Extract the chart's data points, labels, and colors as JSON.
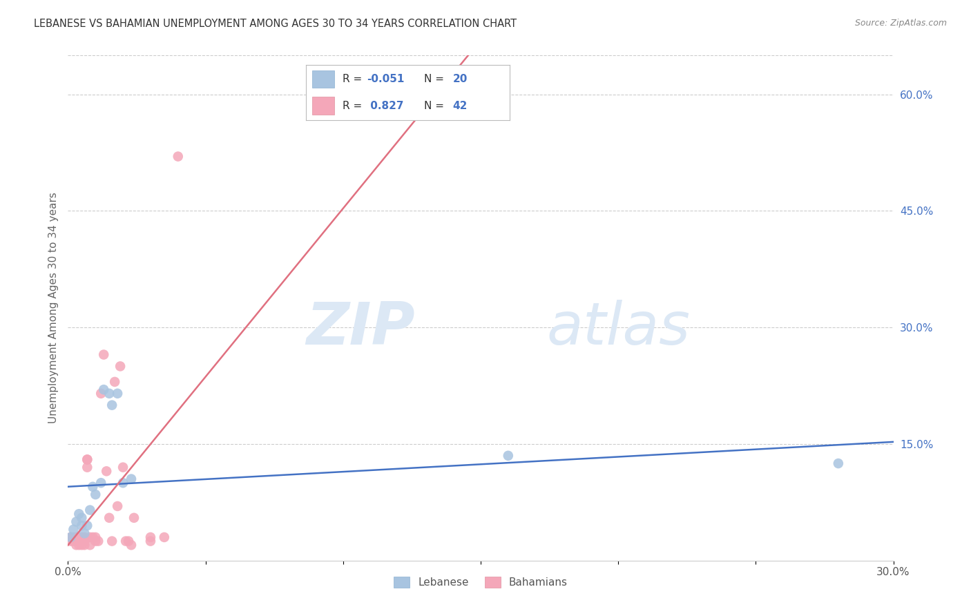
{
  "title": "LEBANESE VS BAHAMIAN UNEMPLOYMENT AMONG AGES 30 TO 34 YEARS CORRELATION CHART",
  "source": "Source: ZipAtlas.com",
  "ylabel": "Unemployment Among Ages 30 to 34 years",
  "xlim": [
    0.0,
    0.3
  ],
  "ylim": [
    0.0,
    0.65
  ],
  "xticks": [
    0.0,
    0.05,
    0.1,
    0.15,
    0.2,
    0.25,
    0.3
  ],
  "xtick_labels": [
    "0.0%",
    "",
    "",
    "",
    "",
    "",
    "30.0%"
  ],
  "yticks_right": [
    0.0,
    0.15,
    0.3,
    0.45,
    0.6
  ],
  "ytick_labels_right": [
    "",
    "15.0%",
    "30.0%",
    "45.0%",
    "60.0%"
  ],
  "watermark_zip": "ZIP",
  "watermark_atlas": "atlas",
  "lebanese_color": "#a8c4e0",
  "bahamian_color": "#f4a7b9",
  "lebanese_line_color": "#4472c4",
  "bahamian_line_color": "#e07080",
  "lebanese_x": [
    0.001,
    0.002,
    0.003,
    0.004,
    0.005,
    0.005,
    0.006,
    0.007,
    0.008,
    0.009,
    0.01,
    0.012,
    0.013,
    0.015,
    0.016,
    0.018,
    0.02,
    0.023,
    0.16,
    0.28
  ],
  "lebanese_y": [
    0.03,
    0.04,
    0.05,
    0.06,
    0.045,
    0.055,
    0.035,
    0.045,
    0.065,
    0.095,
    0.085,
    0.1,
    0.22,
    0.215,
    0.2,
    0.215,
    0.1,
    0.105,
    0.135,
    0.125
  ],
  "bahamian_x": [
    0.001,
    0.001,
    0.002,
    0.002,
    0.003,
    0.003,
    0.003,
    0.004,
    0.004,
    0.004,
    0.005,
    0.005,
    0.005,
    0.006,
    0.006,
    0.006,
    0.007,
    0.007,
    0.007,
    0.008,
    0.008,
    0.009,
    0.01,
    0.01,
    0.011,
    0.012,
    0.013,
    0.014,
    0.015,
    0.016,
    0.017,
    0.018,
    0.019,
    0.02,
    0.021,
    0.022,
    0.023,
    0.024,
    0.03,
    0.03,
    0.035,
    0.04
  ],
  "bahamian_y": [
    0.025,
    0.03,
    0.025,
    0.03,
    0.02,
    0.025,
    0.03,
    0.02,
    0.025,
    0.03,
    0.02,
    0.025,
    0.03,
    0.02,
    0.025,
    0.03,
    0.12,
    0.13,
    0.13,
    0.02,
    0.03,
    0.03,
    0.025,
    0.03,
    0.025,
    0.215,
    0.265,
    0.115,
    0.055,
    0.025,
    0.23,
    0.07,
    0.25,
    0.12,
    0.025,
    0.025,
    0.02,
    0.055,
    0.025,
    0.03,
    0.03,
    0.52
  ]
}
